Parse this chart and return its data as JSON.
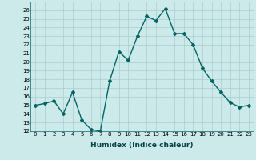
{
  "x": [
    0,
    1,
    2,
    3,
    4,
    5,
    6,
    7,
    8,
    9,
    10,
    11,
    12,
    13,
    14,
    15,
    16,
    17,
    18,
    19,
    20,
    21,
    22,
    23
  ],
  "y": [
    15.0,
    15.2,
    15.5,
    14.0,
    16.5,
    13.3,
    12.2,
    12.0,
    17.8,
    21.2,
    20.2,
    23.0,
    25.3,
    24.8,
    26.2,
    23.3,
    23.3,
    22.0,
    19.3,
    17.8,
    16.5,
    15.3,
    14.8,
    15.0
  ],
  "title": "",
  "xlabel": "Humidex (Indice chaleur)",
  "ylabel": "",
  "ylim": [
    12,
    27
  ],
  "xlim": [
    -0.5,
    23.5
  ],
  "yticks": [
    12,
    13,
    14,
    15,
    16,
    17,
    18,
    19,
    20,
    21,
    22,
    23,
    24,
    25,
    26
  ],
  "xticks": [
    0,
    1,
    2,
    3,
    4,
    5,
    6,
    7,
    8,
    9,
    10,
    11,
    12,
    13,
    14,
    15,
    16,
    17,
    18,
    19,
    20,
    21,
    22,
    23
  ],
  "line_color": "#006666",
  "marker": "D",
  "marker_size": 2.0,
  "bg_color": "#cceaea",
  "grid_color": "#aacccc",
  "line_width": 1.0,
  "tick_fontsize": 5.0,
  "xlabel_fontsize": 6.5
}
